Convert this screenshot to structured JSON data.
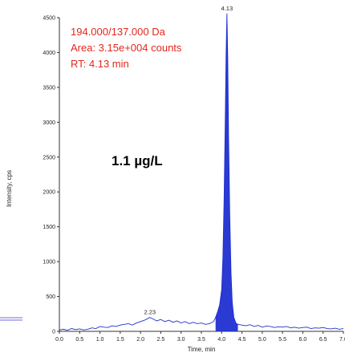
{
  "chart_data": {
    "type": "line",
    "xlabel": "Time, min",
    "ylabel": "Intensity, cps",
    "xlim": [
      0.0,
      7.0
    ],
    "ylim": [
      0,
      4500
    ],
    "x_ticks": [
      "0.0",
      "0.5",
      "1.0",
      "1.5",
      "2.0",
      "2.5",
      "3.0",
      "3.5",
      "4.0",
      "4.5",
      "5.0",
      "5.5",
      "6.0",
      "6.5",
      "7.0"
    ],
    "y_ticks": [
      "0",
      "500",
      "1000",
      "1500",
      "2000",
      "2500",
      "3000",
      "3500",
      "4000",
      "4500"
    ],
    "annotations": {
      "transition": "194.000/137.000 Da",
      "area": "Area: 3.15e+004 counts",
      "rt": "RT: 4.13 min",
      "concentration": "1.1 µg/L"
    },
    "peak_labels": [
      {
        "x": 2.23,
        "y": 200,
        "label": "2.23"
      },
      {
        "x": 4.13,
        "y": 4560,
        "label": "4.13"
      }
    ],
    "series": [
      {
        "color": "#1f2fd0",
        "fill": true,
        "x": [
          0.0,
          0.1,
          0.2,
          0.3,
          0.4,
          0.5,
          0.6,
          0.7,
          0.8,
          0.9,
          1.0,
          1.1,
          1.2,
          1.3,
          1.4,
          1.5,
          1.6,
          1.7,
          1.8,
          1.9,
          2.0,
          2.1,
          2.15,
          2.23,
          2.3,
          2.4,
          2.5,
          2.6,
          2.7,
          2.8,
          2.9,
          3.0,
          3.1,
          3.2,
          3.3,
          3.4,
          3.5,
          3.6,
          3.7,
          3.8,
          3.85,
          3.9,
          3.95,
          4.0,
          4.03,
          4.06,
          4.09,
          4.11,
          4.13,
          4.15,
          4.17,
          4.2,
          4.23,
          4.26,
          4.3,
          4.35,
          4.4,
          4.5,
          4.6,
          4.7,
          4.8,
          4.9,
          5.0,
          5.1,
          5.2,
          5.3,
          5.4,
          5.5,
          5.6,
          5.7,
          5.8,
          5.9,
          6.0,
          6.1,
          6.2,
          6.3,
          6.4,
          6.5,
          6.6,
          6.7,
          6.8,
          6.9,
          7.0
        ],
        "y": [
          20,
          30,
          15,
          40,
          25,
          35,
          20,
          30,
          50,
          40,
          70,
          60,
          55,
          80,
          70,
          90,
          100,
          110,
          90,
          120,
          140,
          160,
          175,
          200,
          180,
          150,
          170,
          140,
          160,
          130,
          150,
          120,
          140,
          110,
          130,
          110,
          120,
          100,
          110,
          140,
          200,
          280,
          380,
          600,
          1050,
          1900,
          3100,
          4000,
          4560,
          3900,
          2800,
          1650,
          850,
          420,
          200,
          120,
          100,
          90,
          80,
          95,
          70,
          85,
          60,
          75,
          70,
          55,
          65,
          60,
          70,
          50,
          60,
          45,
          55,
          60,
          40,
          50,
          45,
          55,
          40,
          35,
          45,
          30,
          40
        ]
      }
    ]
  }
}
